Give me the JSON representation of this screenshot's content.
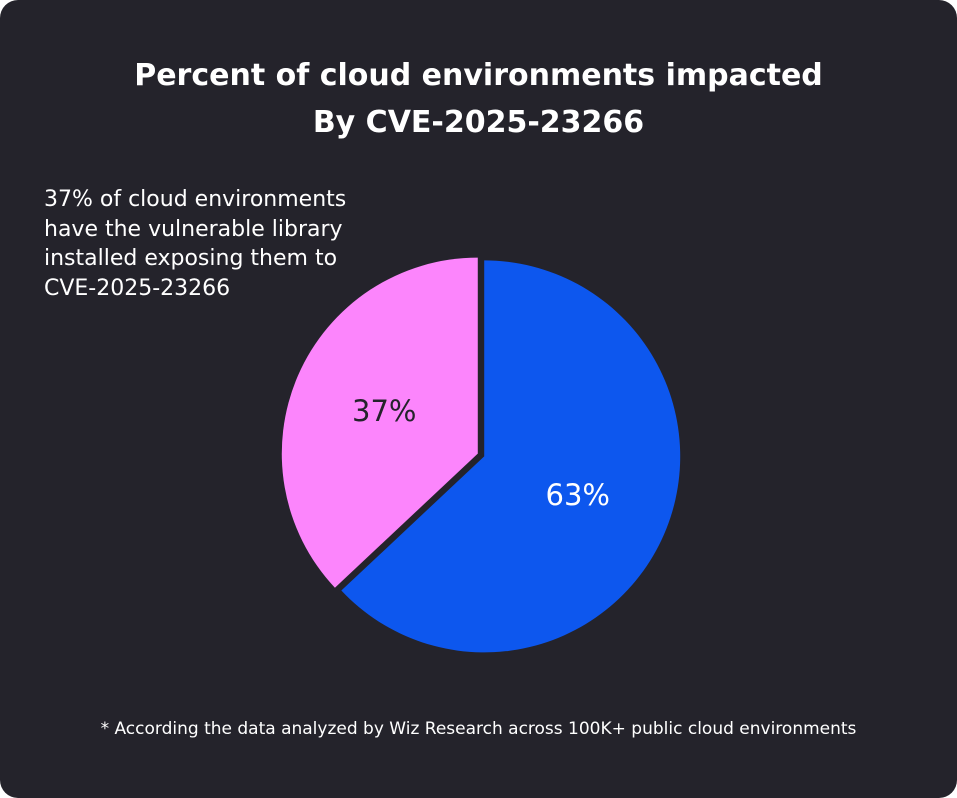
{
  "chart_data": {
    "type": "pie",
    "title_lines": [
      "Percent of cloud environments impacted",
      "By CVE-2025-23266"
    ],
    "slices": [
      {
        "label": "63%",
        "value": 63,
        "color": "#0d57ee",
        "text_color": "#ffffff"
      },
      {
        "label": "37%",
        "value": 37,
        "color": "#fc85fc",
        "text_color": "#24232b"
      }
    ],
    "annotation_lines": [
      "37% of cloud environments",
      "have the vulnerable library",
      "installed exposing them to",
      "CVE-2025-23266"
    ],
    "footnote": "* According the data analyzed by Wiz Research across 100K+ public cloud environments",
    "colors": {
      "background": "#24232b",
      "leader_start": "#2a5cf0",
      "leader_end": "#fc85fc"
    }
  }
}
